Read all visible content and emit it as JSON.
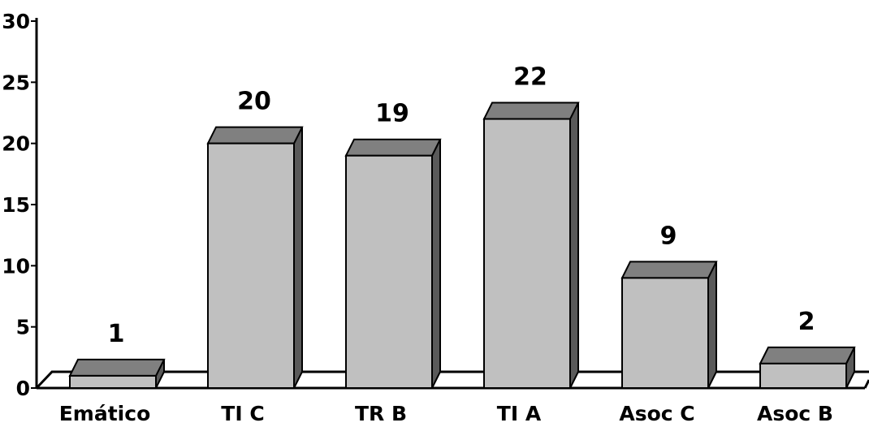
{
  "chart_data": {
    "type": "bar",
    "style": "3d",
    "categories": [
      "Emático",
      "TI C",
      "TR B",
      "TI A",
      "Asoc C",
      "Asoc B"
    ],
    "values": [
      1,
      20,
      19,
      22,
      9,
      2
    ],
    "data_labels": [
      "1",
      "20",
      "19",
      "22",
      "9",
      "2"
    ],
    "title": "",
    "xlabel": "",
    "ylabel": "",
    "ylim": [
      0,
      30
    ],
    "yticks": [
      "0",
      "5",
      "10",
      "15",
      "20",
      "25",
      "30"
    ],
    "grid": false,
    "legend": "none",
    "colors": {
      "front": "#c0c0c0",
      "top": "#808080",
      "side": "#5a5a5a",
      "outline": "#000000",
      "floor": "#000000"
    }
  }
}
